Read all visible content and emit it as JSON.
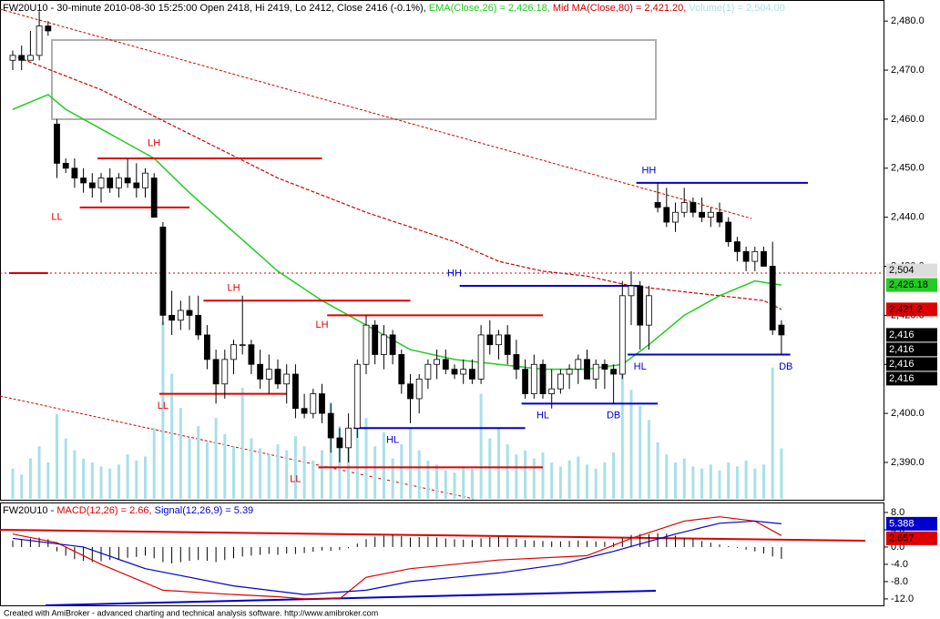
{
  "chart_data": [
    {
      "type": "candlestick",
      "title": "FW20U10 - 30-minute 2010-08-30 15:25:00 Open 2418, Hi 2419, Lo 2412, Close 2416 (-0.1%),",
      "open": [
        2472,
        2473,
        2472,
        2473,
        2479,
        2459,
        2451,
        2450,
        2448,
        2447,
        2446,
        2448,
        2446,
        2448,
        2447,
        2446,
        2448,
        2438,
        2420,
        2419,
        2421,
        2420,
        2416,
        2411,
        2406,
        2411,
        2414,
        2414,
        2410,
        2407,
        2409,
        2406,
        2408,
        2401,
        2400,
        2404,
        2400,
        2395,
        2393,
        2397,
        2410,
        2418,
        2412,
        2416,
        2412,
        2406,
        2403,
        2407,
        2410,
        2411,
        2409,
        2408,
        2409,
        2407,
        2416,
        2414,
        2416,
        2412,
        2409,
        2404,
        2410,
        2404,
        2405,
        2408,
        2409,
        2411,
        2407,
        2410,
        2409,
        2408,
        2424,
        2426,
        2418,
        2443,
        2442,
        2439,
        2441,
        2443,
        2441,
        2440,
        2441,
        2439,
        2435,
        2433,
        2431,
        2433,
        2430,
        2418
      ],
      "high": [
        2474,
        2475,
        2478,
        2482,
        2480,
        2460,
        2452,
        2452,
        2450,
        2449,
        2449,
        2450,
        2449,
        2452,
        2451,
        2450,
        2449,
        2439,
        2425,
        2423,
        2424,
        2424,
        2418,
        2413,
        2413,
        2415,
        2424,
        2415,
        2413,
        2412,
        2411,
        2410,
        2410,
        2404,
        2405,
        2406,
        2402,
        2397,
        2400,
        2411,
        2420,
        2419,
        2418,
        2417,
        2413,
        2408,
        2408,
        2411,
        2413,
        2413,
        2410,
        2411,
        2411,
        2418,
        2419,
        2417,
        2418,
        2415,
        2411,
        2412,
        2411,
        2409,
        2409,
        2410,
        2412,
        2413,
        2411,
        2411,
        2410,
        2427,
        2429,
        2427,
        2426,
        2447,
        2446,
        2443,
        2446,
        2444,
        2444,
        2442,
        2443,
        2440,
        2436,
        2434,
        2434,
        2434,
        2435,
        2419
      ],
      "low": [
        2470,
        2470,
        2472,
        2472,
        2477,
        2448,
        2449,
        2446,
        2445,
        2444,
        2443,
        2445,
        2444,
        2446,
        2444,
        2444,
        2440,
        2418,
        2416,
        2417,
        2417,
        2415,
        2409,
        2402,
        2403,
        2408,
        2412,
        2408,
        2405,
        2404,
        2405,
        2402,
        2399,
        2399,
        2399,
        2398,
        2392,
        2390,
        2390,
        2395,
        2408,
        2410,
        2409,
        2410,
        2404,
        2398,
        2400,
        2405,
        2407,
        2408,
        2407,
        2406,
        2406,
        2406,
        2412,
        2411,
        2410,
        2407,
        2403,
        2403,
        2403,
        2401,
        2404,
        2405,
        2406,
        2407,
        2405,
        2405,
        2402,
        2407,
        2418,
        2413,
        2413,
        2441,
        2438,
        2437,
        2440,
        2440,
        2439,
        2438,
        2438,
        2434,
        2431,
        2429,
        2429,
        2430,
        2416,
        2412
      ],
      "close": [
        2473,
        2472,
        2473,
        2479,
        2478,
        2451,
        2450,
        2448,
        2447,
        2446,
        2448,
        2446,
        2448,
        2447,
        2446,
        2449,
        2440,
        2420,
        2419,
        2421,
        2420,
        2416,
        2411,
        2406,
        2411,
        2414,
        2414,
        2410,
        2407,
        2409,
        2406,
        2408,
        2401,
        2400,
        2404,
        2400,
        2395,
        2393,
        2397,
        2410,
        2418,
        2412,
        2416,
        2412,
        2406,
        2403,
        2407,
        2410,
        2411,
        2409,
        2408,
        2409,
        2407,
        2416,
        2414,
        2416,
        2412,
        2409,
        2404,
        2410,
        2404,
        2405,
        2408,
        2409,
        2411,
        2407,
        2410,
        2409,
        2408,
        2424,
        2426,
        2418,
        2424,
        2442,
        2439,
        2441,
        2443,
        2441,
        2440,
        2441,
        2439,
        2435,
        2433,
        2431,
        2433,
        2430,
        2417,
        2416
      ],
      "color_up": "#ffffff",
      "color_down": "#000000",
      "ylim": [
        2382.2,
        2484.3
      ],
      "yticks": [
        {
          "value": 2390,
          "label": "2,390.0"
        },
        {
          "value": 2400,
          "label": "2,400.0"
        },
        {
          "value": 2410,
          "label": "2,410.0"
        },
        {
          "value": 2420,
          "label": "2,420.0"
        },
        {
          "value": 2430,
          "label": "2,430.0"
        },
        {
          "value": 2440,
          "label": "2,440.0"
        },
        {
          "value": 2450,
          "label": "2,450.0"
        },
        {
          "value": 2460,
          "label": "2,460.0"
        },
        {
          "value": 2470,
          "label": "2,470.0"
        },
        {
          "value": 2480,
          "label": "2,480.0"
        }
      ],
      "lines": [
        {
          "name": "EMA(Close,26) = 2,426.18,",
          "color": "#22cc22",
          "dashed": false,
          "x": [
            0,
            4,
            6,
            10,
            16,
            20,
            25,
            30,
            35,
            40,
            45,
            50,
            55,
            60,
            65,
            69,
            72,
            76,
            80,
            84,
            87
          ],
          "values": [
            2462,
            2465,
            2462,
            2458,
            2452,
            2445,
            2437,
            2429,
            2423,
            2418,
            2413,
            2411,
            2410,
            2409,
            2409,
            2410,
            2414,
            2420,
            2424,
            2427,
            2426.18
          ]
        },
        {
          "name": "Mid MA(Close,80) = 2,421.20,",
          "color": "#cc0000",
          "dashed": true,
          "x": [
            0,
            10,
            20,
            30,
            40,
            50,
            55,
            60,
            65,
            70,
            75,
            80,
            85,
            87
          ],
          "values": [
            2473,
            2466,
            2457,
            2448,
            2441,
            2435,
            2431,
            2429,
            2428,
            2426,
            2425,
            2424,
            2423,
            2421.2
          ]
        }
      ],
      "volume": {
        "name": "Volume(1) = 2,504.00",
        "color": "#a8e0e8",
        "ylim": [
          0,
          24700
        ],
        "values": [
          1500,
          1200,
          2000,
          2600,
          1800,
          4200,
          3000,
          2400,
          2000,
          1800,
          1600,
          1500,
          1700,
          2200,
          1900,
          2100,
          3500,
          8800,
          6200,
          4500,
          3000,
          3600,
          2800,
          4000,
          3200,
          2600,
          5500,
          3000,
          2500,
          2200,
          2700,
          2400,
          3100,
          2600,
          1900,
          2400,
          4800,
          3600,
          3000,
          5200,
          4000,
          2600,
          3300,
          2000,
          2700,
          3500,
          2400,
          1900,
          1700,
          1400,
          1300,
          1600,
          1500,
          5200,
          3000,
          3500,
          2700,
          2200,
          2400,
          2000,
          2300,
          1800,
          1600,
          1900,
          2100,
          1700,
          1500,
          1800,
          2300,
          6800,
          5400,
          4600,
          3900,
          2800,
          2200,
          1800,
          2000,
          1600,
          1500,
          1700,
          1400,
          1800,
          1600,
          1900,
          1500,
          1700,
          6500,
          2504
        ]
      },
      "levels": [
        {
          "value": 2452,
          "from": 10,
          "to": 35,
          "color": "#dd0000"
        },
        {
          "value": 2442,
          "from": 8,
          "to": 20,
          "color": "#dd0000"
        },
        {
          "value": 2428.6,
          "from": 0,
          "to": 4,
          "color": "#dd0000"
        },
        {
          "value": 2423,
          "from": 22,
          "to": 45,
          "color": "#dd0000"
        },
        {
          "value": 2404,
          "from": 17,
          "to": 31,
          "color": "#dd0000"
        },
        {
          "value": 2420,
          "from": 36,
          "to": 60,
          "color": "#dd0000"
        },
        {
          "value": 2389,
          "from": 35,
          "to": 60,
          "color": "#dd0000"
        },
        {
          "value": 2397,
          "from": 39,
          "to": 58,
          "color": "#0000cc"
        },
        {
          "value": 2426,
          "from": 51,
          "to": 71,
          "color": "#0000cc"
        },
        {
          "value": 2402,
          "from": 58,
          "to": 73,
          "color": "#0000cc"
        },
        {
          "value": 2447,
          "from": 71,
          "to": 90,
          "color": "#0000cc"
        },
        {
          "value": 2412,
          "from": 70,
          "to": 88,
          "color": "#0000cc"
        }
      ],
      "annotations": [
        {
          "text": "LH",
          "x": 16,
          "y": 2455,
          "color": "#dd0000"
        },
        {
          "text": "LL",
          "x": 5,
          "y": 2440,
          "color": "#dd0000"
        },
        {
          "text": "LH",
          "x": 25,
          "y": 2425.5,
          "color": "#dd0000"
        },
        {
          "text": "LL",
          "x": 17,
          "y": 2401.5,
          "color": "#dd0000"
        },
        {
          "text": "LH",
          "x": 35,
          "y": 2418,
          "color": "#dd0000"
        },
        {
          "text": "LL",
          "x": 32,
          "y": 2386.5,
          "color": "#dd0000"
        },
        {
          "text": "HL",
          "x": 43,
          "y": 2394.5,
          "color": "#0000cc"
        },
        {
          "text": "HH",
          "x": 50,
          "y": 2428.5,
          "color": "#0000cc"
        },
        {
          "text": "HL",
          "x": 60,
          "y": 2399.5,
          "color": "#0000cc"
        },
        {
          "text": "DB",
          "x": 68,
          "y": 2399.5,
          "color": "#0000cc"
        },
        {
          "text": "HH",
          "x": 72,
          "y": 2449.5,
          "color": "#0000cc"
        },
        {
          "text": "HL",
          "x": 71,
          "y": 2409.5,
          "color": "#0000cc"
        },
        {
          "text": "DB",
          "x": 87.5,
          "y": 2409.5,
          "color": "#0000cc"
        }
      ],
      "tags": [
        {
          "value": 2504,
          "label": "2,504",
          "color": "#dddddd",
          "text_color": "#000000"
        },
        {
          "value": 2426.18,
          "label": "2,426.18",
          "color": "#22cc22",
          "text_color": "#000000"
        },
        {
          "value": 2421.2,
          "label": "2,421.2",
          "color": "#dd0000",
          "text_color": "#000000"
        },
        {
          "value": 2416,
          "label": "2,416",
          "color": "#000000",
          "text_color": "#ffffff"
        },
        {
          "value": 2416,
          "label": "2,416",
          "color": "#000000",
          "text_color": "#ffffff"
        },
        {
          "value": 2416,
          "label": "2,416",
          "color": "#000000",
          "text_color": "#ffffff"
        },
        {
          "value": 2416,
          "label": "2,416",
          "color": "#000000",
          "text_color": "#ffffff"
        }
      ]
    },
    {
      "type": "macd",
      "title": "FW20U10 -",
      "ylim": [
        -13.5,
        10.1
      ],
      "yticks": [
        {
          "value": 8,
          "label": "8.0"
        },
        {
          "value": 4,
          "label": "4.0"
        },
        {
          "value": 0,
          "label": "0.0"
        },
        {
          "value": -4,
          "label": "-4.0"
        },
        {
          "value": -8,
          "label": "-8.0"
        },
        {
          "value": -12,
          "label": "-12.0"
        }
      ],
      "series": [
        {
          "name": "MACD(12,26) = 2.66,",
          "color": "#dd0000",
          "x": [
            0,
            5,
            10,
            17,
            25,
            30,
            33,
            37,
            40,
            45,
            55,
            65,
            70,
            76,
            80,
            84,
            87
          ],
          "values": [
            3,
            1,
            -4,
            -10,
            -11,
            -11.5,
            -12,
            -12,
            -7,
            -5,
            -3,
            -2,
            2,
            6,
            7,
            6,
            2.66
          ]
        },
        {
          "name": "Signal(12,26,9) = 5.39",
          "color": "#0000cc",
          "x": [
            0,
            8,
            15,
            25,
            33,
            40,
            45,
            55,
            62,
            68,
            75,
            80,
            84,
            87
          ],
          "values": [
            2,
            0,
            -5,
            -9,
            -11,
            -10,
            -8,
            -6,
            -4,
            -1,
            3,
            5.5,
            6,
            5.39
          ]
        }
      ],
      "histogram": [
        1.5,
        1.8,
        2,
        2.2,
        1.8,
        -1,
        -2,
        -2.8,
        -3.2,
        -3.5,
        -3.3,
        -3,
        -2.8,
        -2.5,
        -2.3,
        -2,
        -2.6,
        -3.5,
        -3.8,
        -3.5,
        -3.2,
        -3,
        -3.2,
        -3.5,
        -3,
        -2.6,
        -2.2,
        -2,
        -1.8,
        -1.6,
        -1.8,
        -1.5,
        -1.6,
        -1.4,
        -1.1,
        -0.8,
        -0.9,
        -0.7,
        -0.3,
        0.8,
        1.8,
        2.4,
        2.6,
        2.8,
        2.5,
        2.2,
        2.3,
        2.4,
        2.2,
        2,
        1.8,
        1.7,
        1.6,
        2,
        2.3,
        2.4,
        2.2,
        1.9,
        1.6,
        1.5,
        1.4,
        1.3,
        1.3,
        1.4,
        1.5,
        1.4,
        1.3,
        1.2,
        1,
        2,
        2.8,
        3,
        3,
        3.2,
        3.1,
        2.6,
        2.2,
        1.8,
        1.4,
        1,
        0.6,
        0.2,
        -0.2,
        -0.6,
        -1,
        -1.5,
        -2.2,
        -2.73
      ],
      "histogram_color": "#000000",
      "tags": [
        {
          "value": 5.388,
          "label": "5.388",
          "color": "#0000cc",
          "text_color": "#ffffff"
        },
        {
          "value": 2.657,
          "label": "2.657",
          "color": "#dd0000",
          "text_color": "#000000"
        }
      ]
    }
  ],
  "footer": "Created with AmiBroker - advanced charting and technical analysis software. http://www.amibroker.com"
}
